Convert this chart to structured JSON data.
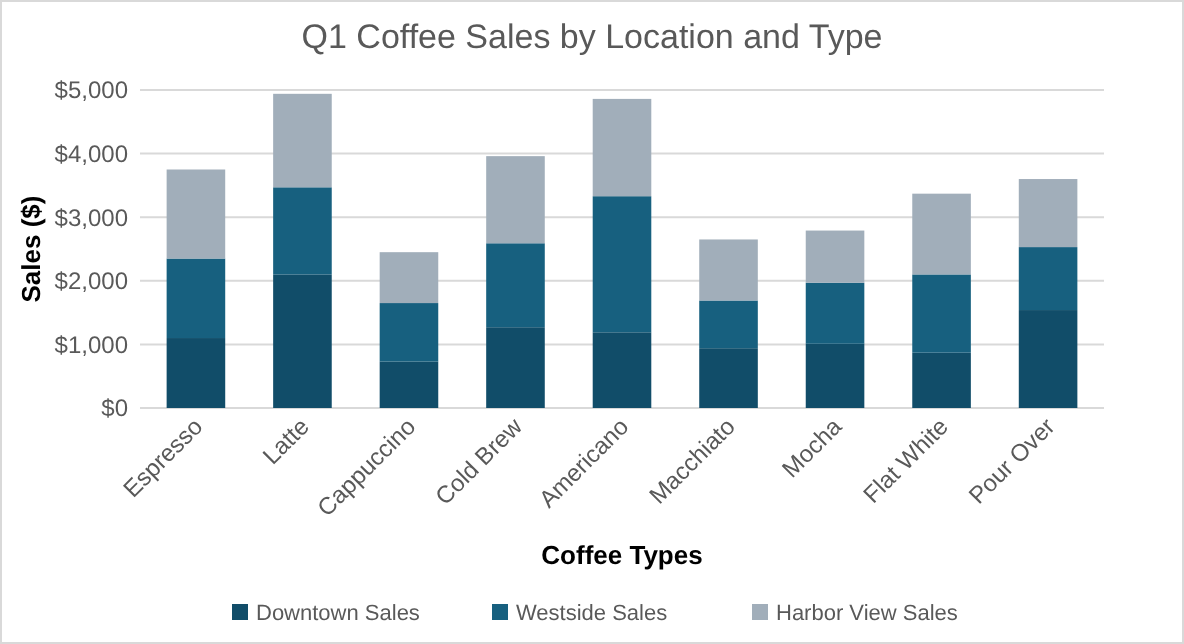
{
  "chart_data": {
    "type": "bar",
    "stacked": true,
    "title": "Q1 Coffee Sales by Location and Type",
    "xlabel": "Coffee Types",
    "ylabel": "Sales ($)",
    "categories": [
      "Espresso",
      "Latte",
      "Cappuccino",
      "Cold Brew",
      "Americano",
      "Macchiato",
      "Mocha",
      "Flat White",
      "Pour Over"
    ],
    "series": [
      {
        "name": "Downtown Sales",
        "color": "#114d69",
        "values": [
          1100,
          2100,
          730,
          1270,
          1190,
          940,
          1010,
          870,
          1540
        ]
      },
      {
        "name": "Westside Sales",
        "color": "#17607f",
        "values": [
          1250,
          1370,
          920,
          1320,
          2140,
          750,
          960,
          1230,
          990
        ]
      },
      {
        "name": "Harbor View Sales",
        "color": "#a1aeba",
        "values": [
          1400,
          1470,
          800,
          1370,
          1530,
          960,
          820,
          1270,
          1070
        ]
      }
    ],
    "ylim": [
      0,
      5000
    ],
    "yticks": [
      {
        "value": 0,
        "label": "$0"
      },
      {
        "value": 1000,
        "label": "$1,000"
      },
      {
        "value": 2000,
        "label": "$2,000"
      },
      {
        "value": 3000,
        "label": "$3,000"
      },
      {
        "value": 4000,
        "label": "$4,000"
      },
      {
        "value": 5000,
        "label": "$5,000"
      }
    ],
    "grid": "y",
    "legend": "bottom"
  }
}
